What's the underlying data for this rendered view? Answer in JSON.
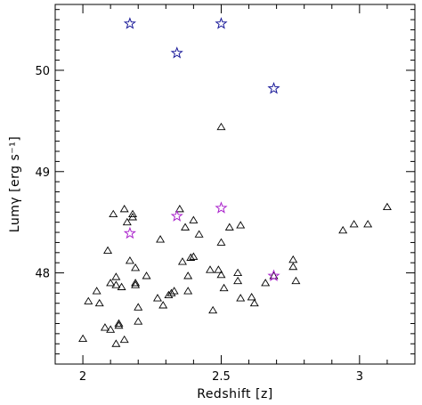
{
  "chart_data": {
    "type": "scatter",
    "title": "",
    "xlabel": "Redshift [z]",
    "ylabel": "Lumγ [erg s⁻¹]",
    "xlim": [
      1.9,
      3.2
    ],
    "ylim": [
      47.1,
      50.65
    ],
    "x_ticks": [
      2,
      2.5,
      3
    ],
    "x_tick_labels": [
      "2",
      "2.5",
      "3"
    ],
    "y_ticks": [
      48,
      49,
      50
    ],
    "y_tick_labels": [
      "48",
      "49",
      "50"
    ],
    "grid": false,
    "legend": "none",
    "series": [
      {
        "marker": "triangle",
        "color": "#000000",
        "points": [
          [
            2.0,
            47.35
          ],
          [
            2.02,
            47.72
          ],
          [
            2.05,
            47.82
          ],
          [
            2.06,
            47.7
          ],
          [
            2.08,
            47.46
          ],
          [
            2.09,
            48.22
          ],
          [
            2.1,
            47.9
          ],
          [
            2.1,
            47.44
          ],
          [
            2.11,
            48.58
          ],
          [
            2.12,
            47.96
          ],
          [
            2.12,
            47.88
          ],
          [
            2.12,
            47.3
          ],
          [
            2.13,
            47.5
          ],
          [
            2.13,
            47.48
          ],
          [
            2.14,
            47.86
          ],
          [
            2.15,
            48.63
          ],
          [
            2.15,
            47.34
          ],
          [
            2.16,
            48.5
          ],
          [
            2.17,
            48.12
          ],
          [
            2.18,
            48.58
          ],
          [
            2.18,
            48.55
          ],
          [
            2.19,
            48.05
          ],
          [
            2.19,
            47.9
          ],
          [
            2.19,
            47.88
          ],
          [
            2.2,
            47.66
          ],
          [
            2.2,
            47.52
          ],
          [
            2.23,
            47.97
          ],
          [
            2.27,
            47.75
          ],
          [
            2.28,
            48.33
          ],
          [
            2.29,
            47.68
          ],
          [
            2.31,
            47.78
          ],
          [
            2.32,
            47.8
          ],
          [
            2.33,
            47.82
          ],
          [
            2.35,
            48.63
          ],
          [
            2.36,
            48.11
          ],
          [
            2.37,
            48.45
          ],
          [
            2.38,
            47.82
          ],
          [
            2.38,
            47.97
          ],
          [
            2.39,
            48.15
          ],
          [
            2.4,
            48.16
          ],
          [
            2.4,
            48.52
          ],
          [
            2.42,
            48.38
          ],
          [
            2.46,
            48.03
          ],
          [
            2.47,
            47.63
          ],
          [
            2.49,
            48.03
          ],
          [
            2.5,
            48.3
          ],
          [
            2.5,
            47.98
          ],
          [
            2.5,
            49.44
          ],
          [
            2.51,
            47.85
          ],
          [
            2.53,
            48.45
          ],
          [
            2.56,
            47.92
          ],
          [
            2.56,
            48.0
          ],
          [
            2.57,
            48.47
          ],
          [
            2.57,
            47.75
          ],
          [
            2.61,
            47.76
          ],
          [
            2.62,
            47.7
          ],
          [
            2.66,
            47.9
          ],
          [
            2.69,
            47.97
          ],
          [
            2.76,
            48.13
          ],
          [
            2.76,
            48.06
          ],
          [
            2.77,
            47.92
          ],
          [
            2.94,
            48.42
          ],
          [
            2.98,
            48.48
          ],
          [
            3.03,
            48.48
          ],
          [
            3.1,
            48.65
          ]
        ]
      },
      {
        "marker": "star",
        "color": "#1a1a99",
        "points": [
          [
            2.17,
            50.46
          ],
          [
            2.34,
            50.17
          ],
          [
            2.5,
            50.46
          ],
          [
            2.69,
            49.82
          ]
        ]
      },
      {
        "marker": "star",
        "color": "#aa22cc",
        "points": [
          [
            2.17,
            48.39
          ],
          [
            2.34,
            48.56
          ],
          [
            2.5,
            48.64
          ],
          [
            2.69,
            47.97
          ]
        ]
      }
    ]
  }
}
